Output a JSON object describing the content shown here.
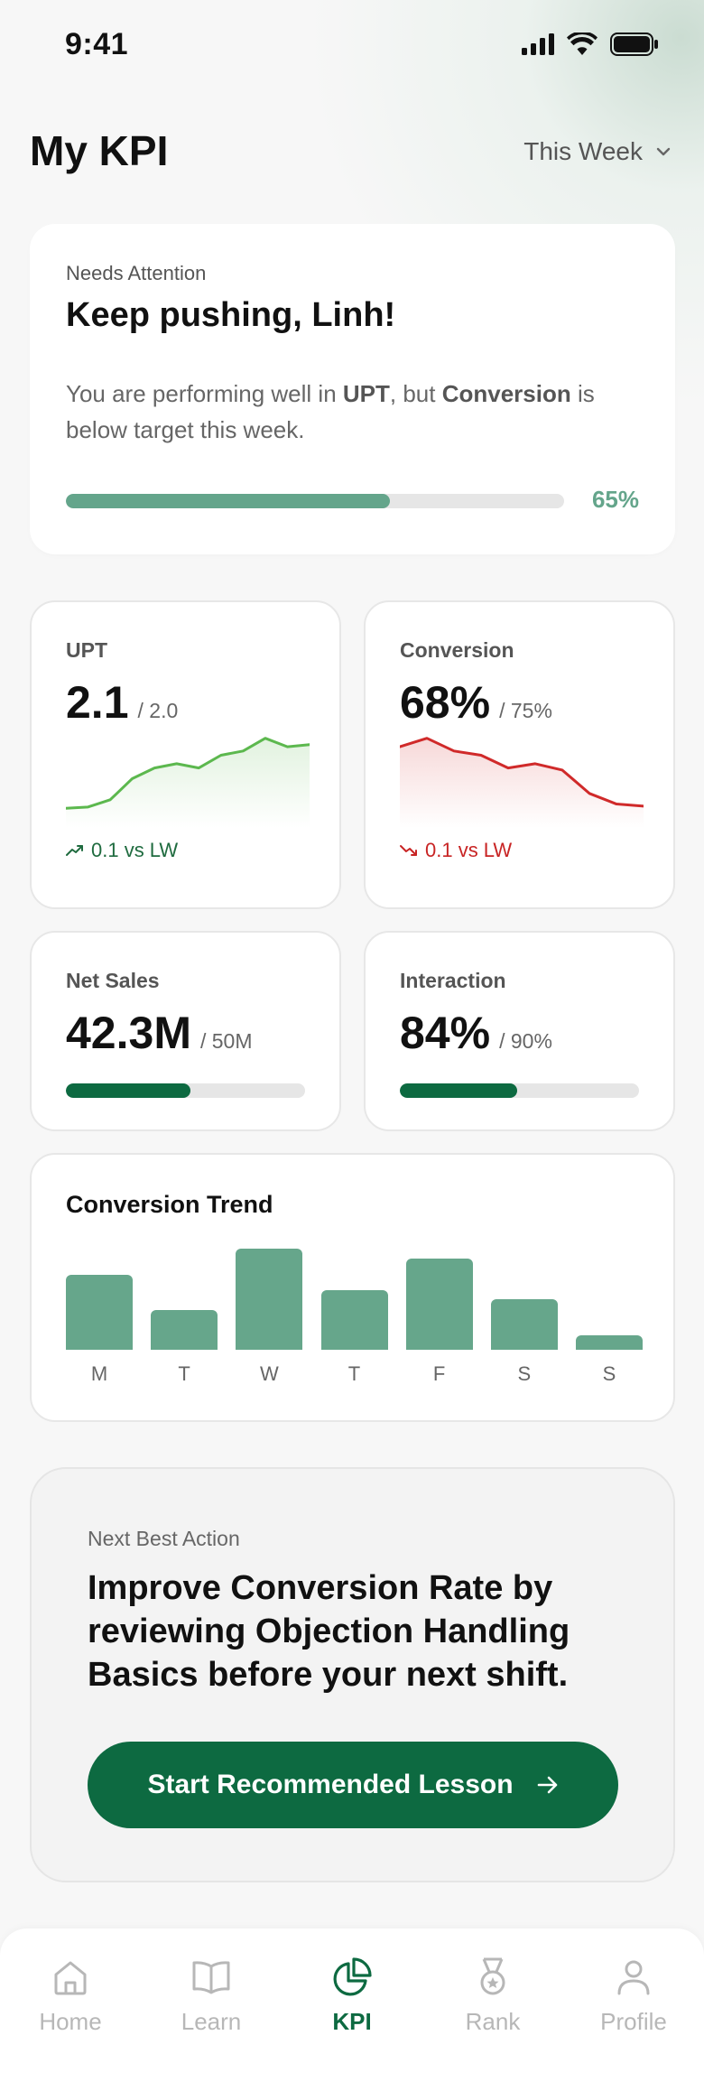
{
  "status": {
    "time": "9:41"
  },
  "header": {
    "title": "My KPI",
    "period": "This Week"
  },
  "attention": {
    "kicker": "Needs Attention",
    "title": "Keep pushing, Linh!",
    "message_prefix": "You are performing well in ",
    "strong_metric": "UPT",
    "message_middle": ", but ",
    "weak_metric": "Conversion",
    "message_suffix": " is below target this week.",
    "progress_label": "65%",
    "progress": 0.65
  },
  "metrics": {
    "upt": {
      "label": "UPT",
      "value": "2.1",
      "target": "/ 2.0",
      "delta": "0.1 vs LW",
      "trend": "up",
      "sparkline": [
        2.5,
        2.8,
        4.5,
        9.5,
        12,
        13,
        12,
        15,
        16,
        19,
        17,
        17.5
      ]
    },
    "conversion": {
      "label": "Conversion",
      "value": "68%",
      "target": "/ 75%",
      "delta": "0.1 vs LW",
      "trend": "down",
      "sparkline": [
        17,
        19,
        16,
        15,
        12,
        13,
        11.5,
        6,
        3.5,
        3
      ]
    },
    "net_sales": {
      "label": "Net Sales",
      "value": "42.3M",
      "target": "/ 50M",
      "progress": 0.52
    },
    "interaction": {
      "label": "Interaction",
      "value": "84%",
      "target": "/ 90%",
      "progress": 0.49
    }
  },
  "conversion_trend": {
    "title": "Conversion Trend",
    "days": [
      "M",
      "T",
      "W",
      "T",
      "F",
      "S",
      "S"
    ],
    "values": [
      74,
      39,
      100,
      59,
      90,
      50,
      14
    ]
  },
  "next_action": {
    "kicker": "Next Best Action",
    "text": "Improve Conversion Rate by reviewing Objection Handling Basics before your next shift.",
    "cta_label": "Start Recommended Lesson"
  },
  "tabs": [
    {
      "label": "Home",
      "icon": "home-icon",
      "active": false
    },
    {
      "label": "Learn",
      "icon": "book-icon",
      "active": false
    },
    {
      "label": "KPI",
      "icon": "pie-chart-icon",
      "active": true
    },
    {
      "label": "Rank",
      "icon": "medal-icon",
      "active": false
    },
    {
      "label": "Profile",
      "icon": "user-icon",
      "active": false
    }
  ],
  "colors": {
    "brand": "#0d6a41",
    "accent": "#64a58b",
    "positive": "#5cb84e",
    "negative": "#d02a2a"
  }
}
